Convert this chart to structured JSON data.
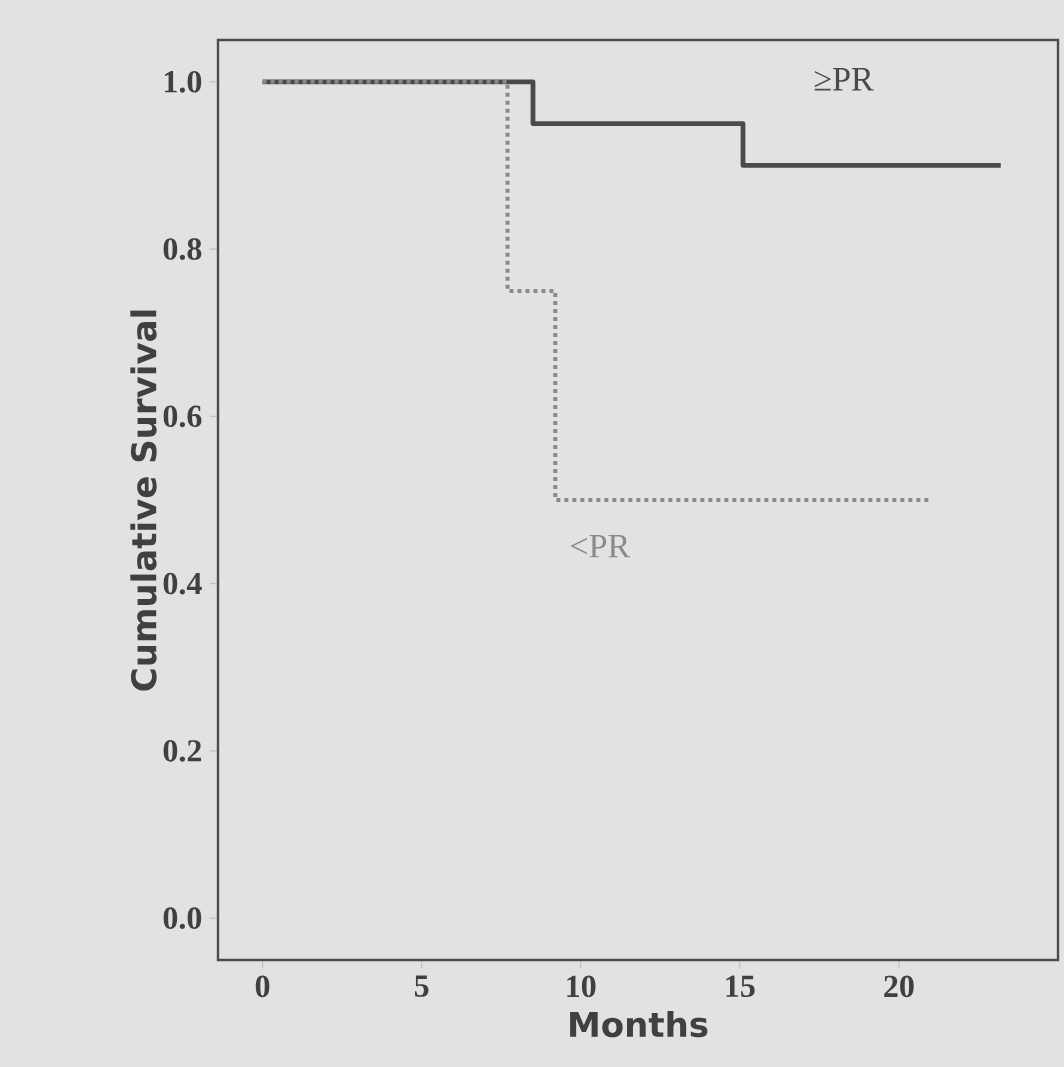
{
  "chart_data": {
    "type": "step",
    "xlabel": "Months",
    "ylabel": "Cumulative Survival",
    "xlim": [
      -1.4,
      25
    ],
    "ylim": [
      -0.05,
      1.05
    ],
    "xticks": [
      0,
      5,
      10,
      15,
      20
    ],
    "yticks": [
      {
        "value": 0,
        "label": "0.0"
      },
      {
        "value": 0.2,
        "label": "0.2"
      },
      {
        "value": 0.4,
        "label": "0.4"
      },
      {
        "value": 0.6,
        "label": "0.6"
      },
      {
        "value": 0.8,
        "label": "0.8"
      },
      {
        "value": 1,
        "label": "1.0"
      }
    ],
    "legend": false,
    "series": [
      {
        "name": "≥PR",
        "color": "#4a4a4a",
        "line_style": "solid",
        "x": [
          0,
          8.5,
          15.1,
          23.2
        ],
        "values": [
          1.0,
          0.95,
          0.9,
          0.9
        ]
      },
      {
        "name": "<PR",
        "color": "#8a8a8a",
        "line_style": "dotted",
        "x": [
          0,
          7.7,
          9.2,
          21.0
        ],
        "values": [
          1.0,
          0.75,
          0.5,
          0.5
        ]
      }
    ]
  }
}
